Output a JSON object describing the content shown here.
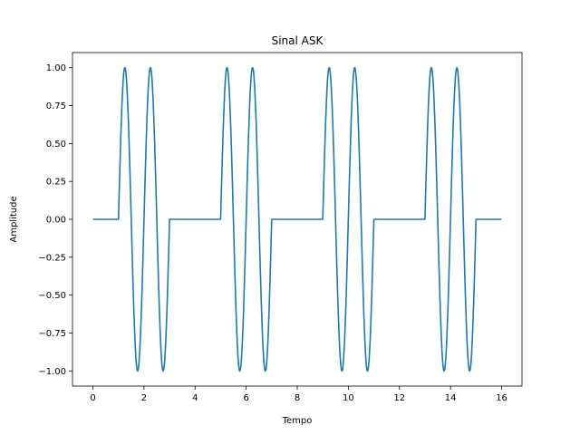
{
  "chart_data": {
    "type": "line",
    "title": "Sinal ASK",
    "xlabel": "Tempo",
    "ylabel": "Amplitude",
    "xlim": [
      -0.8,
      16.8
    ],
    "ylim": [
      -1.1,
      1.1
    ],
    "xticks": [
      0,
      2,
      4,
      6,
      8,
      10,
      12,
      14,
      16
    ],
    "xtick_labels": [
      "0",
      "2",
      "4",
      "6",
      "8",
      "10",
      "12",
      "14",
      "16"
    ],
    "yticks": [
      -1.0,
      -0.75,
      -0.5,
      -0.25,
      0.0,
      0.25,
      0.5,
      0.75,
      1.0
    ],
    "ytick_labels": [
      "−1.00",
      "−0.75",
      "−0.50",
      "−0.25",
      "0.00",
      "0.25",
      "0.50",
      "0.75",
      "1.00"
    ],
    "grid": false,
    "series": [
      {
        "color": "#1f77b4",
        "signal": {
          "bits": [
            0,
            1,
            1,
            0,
            0,
            1,
            1,
            0,
            0,
            1,
            1,
            0,
            0,
            1,
            1,
            0
          ],
          "bit_duration": 1,
          "carrier_frequency": 1,
          "amplitude": 1,
          "x_range": [
            0,
            16
          ]
        }
      }
    ]
  }
}
